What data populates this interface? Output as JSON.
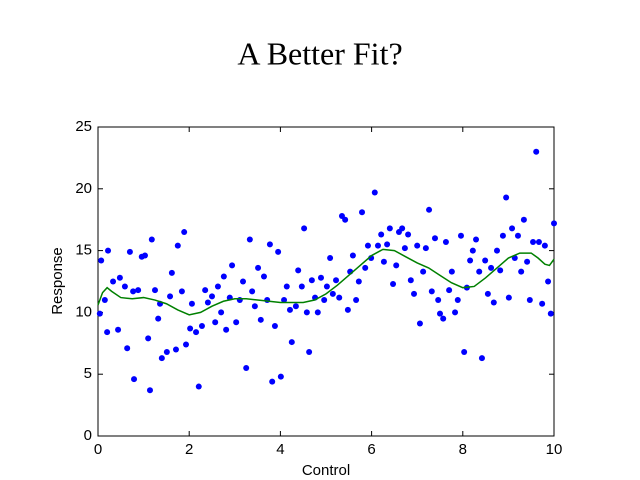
{
  "chart_data": {
    "type": "scatter",
    "title": "A Better Fit?",
    "xlabel": "Control",
    "ylabel": "Response",
    "xlim": [
      0,
      10
    ],
    "ylim": [
      0,
      25
    ],
    "xticks": [
      0,
      2,
      4,
      6,
      8,
      10
    ],
    "yticks": [
      0,
      5,
      10,
      15,
      20,
      25
    ],
    "series": [
      {
        "type": "scatter",
        "color": "#0000ff",
        "x": [
          0.04,
          0.07,
          0.15,
          0.22,
          0.2,
          0.33,
          0.44,
          0.48,
          0.59,
          0.64,
          0.7,
          0.77,
          0.79,
          0.88,
          0.96,
          1.03,
          1.1,
          1.14,
          1.18,
          1.25,
          1.32,
          1.36,
          1.4,
          1.51,
          1.58,
          1.62,
          1.71,
          1.75,
          1.84,
          1.89,
          1.93,
          2.02,
          2.06,
          2.15,
          2.21,
          2.28,
          2.35,
          2.41,
          2.5,
          2.57,
          2.63,
          2.7,
          2.76,
          2.81,
          2.89,
          2.94,
          3.03,
          3.11,
          3.18,
          3.25,
          3.33,
          3.38,
          3.44,
          3.51,
          3.57,
          3.64,
          3.71,
          3.77,
          3.82,
          3.88,
          3.95,
          4.01,
          4.08,
          4.14,
          4.21,
          4.25,
          4.34,
          4.39,
          4.47,
          4.52,
          4.58,
          4.63,
          4.69,
          4.76,
          4.82,
          4.89,
          4.96,
          5.02,
          5.09,
          5.15,
          5.22,
          5.29,
          5.35,
          5.42,
          5.48,
          5.53,
          5.59,
          5.66,
          5.72,
          5.79,
          5.86,
          5.92,
          5.99,
          6.07,
          6.14,
          6.21,
          6.27,
          6.34,
          6.4,
          6.47,
          6.54,
          6.6,
          6.67,
          6.73,
          6.8,
          6.86,
          6.93,
          7.0,
          7.06,
          7.13,
          7.19,
          7.26,
          7.32,
          7.39,
          7.46,
          7.5,
          7.57,
          7.63,
          7.7,
          7.76,
          7.83,
          7.89,
          7.96,
          8.03,
          8.09,
          8.16,
          8.22,
          8.29,
          8.36,
          8.42,
          8.49,
          8.55,
          8.62,
          8.68,
          8.75,
          8.82,
          8.88,
          8.95,
          9.01,
          9.08,
          9.14,
          9.21,
          9.28,
          9.34,
          9.41,
          9.47,
          9.54,
          9.61,
          9.67,
          9.74,
          9.8,
          9.87,
          9.93,
          10.0
        ],
        "y": [
          9.9,
          14.2,
          11.0,
          15.0,
          8.4,
          12.5,
          8.6,
          12.8,
          12.1,
          7.1,
          14.9,
          11.7,
          4.6,
          11.8,
          14.5,
          14.6,
          7.9,
          3.7,
          15.9,
          11.8,
          9.5,
          10.7,
          6.3,
          6.8,
          11.3,
          13.2,
          7.0,
          15.4,
          11.7,
          16.5,
          7.4,
          8.7,
          10.7,
          8.4,
          4.0,
          8.9,
          11.8,
          10.8,
          11.3,
          9.2,
          12.1,
          10.0,
          12.9,
          8.6,
          11.2,
          13.8,
          9.2,
          11.0,
          12.5,
          5.5,
          15.9,
          11.7,
          10.5,
          13.6,
          9.4,
          12.9,
          11.0,
          15.5,
          4.4,
          8.9,
          14.9,
          4.8,
          11.0,
          12.1,
          10.2,
          7.6,
          10.5,
          13.4,
          12.1,
          16.8,
          10.0,
          6.8,
          12.6,
          11.2,
          10.0,
          12.8,
          11.0,
          12.1,
          14.4,
          11.5,
          12.6,
          11.2,
          17.8,
          17.5,
          10.2,
          13.3,
          14.6,
          11.0,
          12.5,
          18.1,
          13.6,
          15.4,
          14.4,
          19.7,
          15.4,
          16.3,
          14.1,
          15.5,
          16.8,
          12.3,
          13.8,
          16.5,
          16.8,
          15.2,
          16.3,
          12.6,
          11.5,
          15.4,
          9.1,
          13.3,
          15.2,
          18.3,
          11.7,
          16.0,
          11.0,
          9.9,
          9.5,
          15.7,
          11.8,
          13.3,
          10.0,
          11.0,
          16.2,
          6.8,
          12.0,
          14.2,
          15.0,
          15.9,
          13.3,
          6.3,
          14.2,
          11.5,
          13.6,
          10.8,
          15.0,
          13.4,
          16.2,
          19.3,
          11.2,
          16.8,
          14.4,
          16.2,
          13.3,
          17.5,
          14.1,
          11.0,
          15.7,
          23.0,
          15.7,
          10.7,
          15.4,
          12.5,
          9.9,
          17.2
        ]
      },
      {
        "type": "line",
        "color": "#008000",
        "x": [
          0,
          0.1,
          0.2,
          0.3,
          0.5,
          0.75,
          1,
          1.25,
          1.5,
          1.75,
          2,
          2.25,
          2.5,
          2.75,
          3,
          3.25,
          3.5,
          3.75,
          4,
          4.25,
          4.5,
          4.75,
          5,
          5.25,
          5.5,
          5.75,
          6,
          6.25,
          6.5,
          6.75,
          7,
          7.25,
          7.5,
          7.75,
          8,
          8.25,
          8.5,
          8.75,
          9,
          9.25,
          9.5,
          9.65,
          9.8,
          9.9,
          10
        ],
        "y": [
          10.6,
          11.6,
          12.0,
          11.7,
          11.2,
          11.1,
          11.2,
          11.0,
          10.7,
          10.2,
          9.8,
          10.0,
          10.5,
          10.9,
          11.1,
          11.1,
          11.0,
          10.9,
          10.8,
          10.8,
          10.8,
          11.0,
          11.5,
          12.2,
          13.0,
          13.8,
          14.6,
          15.1,
          15.0,
          14.5,
          14.0,
          13.6,
          13.0,
          12.4,
          12.0,
          12.1,
          12.8,
          13.6,
          14.4,
          14.8,
          14.8,
          14.4,
          13.9,
          13.8,
          14.3
        ]
      }
    ]
  }
}
